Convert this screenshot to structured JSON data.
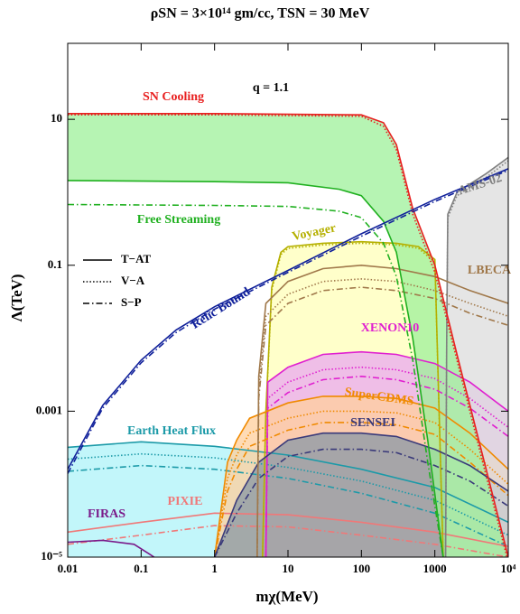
{
  "chart_data": {
    "type": "line",
    "title": "ρSN = 3×10¹⁴ gm/cc, TSN = 30 MeV",
    "annotation": "q = 1.1",
    "x_label": "mχ(MeV)",
    "y_label": "Λ(TeV)",
    "xscale": "log",
    "yscale": "log",
    "xlim": [
      0.01,
      10000
    ],
    "ylim": [
      1e-05,
      110
    ],
    "xticks": [
      0.01,
      0.1,
      1,
      10,
      100,
      1000,
      {
        "value": 10000,
        "label": "10⁴"
      }
    ],
    "yticks": [
      {
        "value": 1e-05,
        "label": "10⁻⁵"
      },
      0.001,
      0.1,
      10
    ],
    "legend": [
      {
        "label": "T−AT",
        "style": "solid"
      },
      {
        "label": "V−A",
        "style": "dotted"
      },
      {
        "label": "S−P",
        "style": "dashdot"
      }
    ],
    "series": [
      {
        "name": "Earth Heat Flux",
        "color": "#1c9aa8",
        "fill": "#aef3f8",
        "x": [
          0.01,
          0.1,
          1,
          10,
          100,
          1000,
          10000
        ],
        "lines": [
          {
            "style": "solid",
            "values": [
              0.00032,
              0.00038,
              0.00033,
              0.00025,
              0.00016,
              9e-05,
              3e-05
            ]
          },
          {
            "style": "dotted",
            "values": [
              0.00022,
              0.00026,
              0.00023,
              0.00017,
              0.00011,
              6e-05,
              2e-05
            ]
          },
          {
            "style": "dashdot",
            "values": [
              0.00015,
              0.00018,
              0.00016,
              0.00012,
              7.5e-05,
              4e-05,
              1.4e-05
            ]
          }
        ]
      },
      {
        "name": "PIXIE",
        "color": "#f07878",
        "x": [
          0.01,
          0.1,
          1,
          10,
          100,
          1000,
          10000
        ],
        "lines": [
          {
            "style": "solid",
            "values": [
              2.2e-05,
              3e-05,
              4e-05,
              3.8e-05,
              3e-05,
              2.2e-05,
              1.4e-05
            ]
          },
          {
            "style": "dashdot",
            "values": [
              1.5e-05,
              2e-05,
              2.7e-05,
              2.6e-05,
              2e-05,
              1.5e-05,
              1e-05
            ]
          }
        ]
      },
      {
        "name": "FIRAS",
        "color": "#7a1a8a",
        "x": [
          0.01,
          0.03,
          0.08,
          0.13,
          0.15
        ],
        "lines": [
          {
            "style": "solid",
            "values": [
              1.6e-05,
              1.7e-05,
              1.5e-05,
              1.1e-05,
              1e-05
            ]
          }
        ]
      },
      {
        "name": "Voyager",
        "color": "#b5b000",
        "fill": "#ffffb8",
        "x": [
          4.5,
          5,
          6,
          8,
          10,
          30,
          100,
          300,
          600,
          1000,
          1300
        ],
        "lines": [
          {
            "style": "solid",
            "values": [
              1e-05,
              0.001,
              0.05,
              0.15,
              0.18,
              0.2,
              0.21,
              0.2,
              0.18,
              0.12,
              1e-05
            ]
          },
          {
            "style": "dotted",
            "values": [
              1e-05,
              0.0009,
              0.045,
              0.14,
              0.17,
              0.19,
              0.2,
              0.19,
              0.17,
              0.11,
              1e-05
            ]
          }
        ]
      },
      {
        "name": "XENON10",
        "color": "#e020d0",
        "fill": "#eaa8f0",
        "x": [
          5,
          5.3,
          10,
          30,
          100,
          300,
          1000,
          3000,
          10000
        ],
        "lines": [
          {
            "style": "solid",
            "values": [
              1e-05,
              0.0025,
              0.004,
              0.006,
              0.0065,
              0.006,
              0.0045,
              0.0025,
              0.001
            ]
          },
          {
            "style": "dotted",
            "values": [
              1e-05,
              0.0015,
              0.0025,
              0.0037,
              0.004,
              0.0037,
              0.0028,
              0.0015,
              0.0006
            ]
          },
          {
            "style": "dashdot",
            "values": [
              1e-05,
              0.0011,
              0.0018,
              0.0027,
              0.003,
              0.0027,
              0.002,
              0.0011,
              0.00045
            ]
          }
        ]
      },
      {
        "name": "SuperCDMS",
        "color": "#f08a00",
        "fill": "#ffcf9c",
        "x": [
          1,
          1.5,
          2,
          3,
          10,
          30,
          100,
          300,
          1000,
          3000,
          10000
        ],
        "lines": [
          {
            "style": "solid",
            "values": [
              1e-05,
              0.0002,
              0.0004,
              0.0008,
              0.0013,
              0.0016,
              0.0016,
              0.0015,
              0.0011,
              0.0005,
              0.00016
            ]
          },
          {
            "style": "dotted",
            "values": [
              1e-05,
              0.00012,
              0.00025,
              0.0005,
              0.0008,
              0.001,
              0.001,
              0.00095,
              0.0007,
              0.0003,
              0.0001
            ]
          },
          {
            "style": "dashdot",
            "values": [
              1e-05,
              8e-05,
              0.00016,
              0.00033,
              0.00055,
              0.0007,
              0.0007,
              0.00065,
              0.00048,
              0.0002,
              7e-05
            ]
          }
        ]
      },
      {
        "name": "SENSEI",
        "color": "#3a3a7a",
        "fill": "#8a98a6",
        "x": [
          1,
          2,
          4,
          10,
          30,
          100,
          300,
          1000,
          3000,
          10000
        ],
        "lines": [
          {
            "style": "solid",
            "values": [
              1e-05,
              6e-05,
              0.0002,
              0.0004,
              0.0005,
              0.0005,
              0.00045,
              0.0003,
              0.00018,
              8e-05
            ]
          },
          {
            "style": "dashdot",
            "values": [
              1e-05,
              4e-05,
              0.00012,
              0.00024,
              0.0003,
              0.0003,
              0.00027,
              0.00018,
              0.00011,
              5e-05
            ]
          }
        ]
      },
      {
        "name": "AMS-02",
        "color": "#808080",
        "fill": "#dcdcdc",
        "x": [
          1400,
          1450,
          1500,
          2000,
          5000,
          10000
        ],
        "lines": [
          {
            "style": "solid",
            "values": [
              1e-05,
              0.01,
              0.5,
              1,
              1.8,
              3
            ]
          },
          {
            "style": "dotted",
            "values": [
              1e-05,
              0.009,
              0.45,
              0.9,
              1.6,
              2.7
            ]
          }
        ]
      },
      {
        "name": "LBECA",
        "color": "#a0784a",
        "x": [
          3.8,
          4,
          5,
          10,
          30,
          100,
          300,
          1000,
          3000,
          10000
        ],
        "lines": [
          {
            "style": "solid",
            "values": [
              1e-05,
              0.003,
              0.03,
              0.06,
              0.09,
              0.1,
              0.09,
              0.07,
              0.045,
              0.03
            ]
          },
          {
            "style": "dotted",
            "values": [
              1e-05,
              0.002,
              0.02,
              0.04,
              0.06,
              0.065,
              0.06,
              0.045,
              0.03,
              0.02
            ]
          },
          {
            "style": "dashdot",
            "values": [
              1e-05,
              0.0015,
              0.015,
              0.03,
              0.045,
              0.05,
              0.045,
              0.035,
              0.022,
              0.015
            ]
          }
        ]
      },
      {
        "name": "SN Cooling",
        "color": "#e82020",
        "fill": "#9ef09a",
        "fill_to": "Free Streaming",
        "x": [
          0.01,
          1,
          100,
          200,
          300,
          500,
          1000,
          2000,
          5000,
          10000
        ],
        "lines": [
          {
            "style": "solid",
            "values": [
              12,
              12,
              11.5,
              9,
              4.5,
              0.6,
              0.1,
              0.006,
              0.00016,
              1e-05
            ]
          },
          {
            "style": "dotted",
            "values": [
              11.5,
              11.5,
              11,
              8,
              3.8,
              0.5,
              0.08,
              0.005,
              0.00013,
              8.5e-06
            ]
          }
        ]
      },
      {
        "name": "Free Streaming",
        "color": "#20b020",
        "x": [
          0.01,
          1,
          10,
          50,
          100,
          200,
          300,
          500,
          800,
          1300
        ],
        "lines": [
          {
            "style": "solid",
            "values": [
              1.45,
              1.4,
              1.35,
              1.1,
              0.9,
              0.4,
              0.15,
              0.01,
              0.0004,
              1e-05
            ]
          },
          {
            "style": "dashdot",
            "values": [
              0.68,
              0.66,
              0.64,
              0.55,
              0.45,
              0.2,
              0.07,
              0.005,
              0.0002,
              1e-05
            ]
          }
        ]
      },
      {
        "name": "Relic Bound",
        "color": "#10209a",
        "x": [
          0.01,
          0.03,
          0.1,
          0.3,
          1,
          10,
          100,
          1000,
          10000
        ],
        "lines": [
          {
            "style": "solid",
            "values": [
              0.00016,
              0.0012,
              0.005,
              0.013,
              0.027,
              0.085,
              0.27,
              0.8,
              2.1
            ]
          },
          {
            "style": "dashdot",
            "values": [
              0.00014,
              0.0011,
              0.0046,
              0.012,
              0.025,
              0.08,
              0.25,
              0.75,
              2
            ]
          }
        ]
      }
    ]
  }
}
